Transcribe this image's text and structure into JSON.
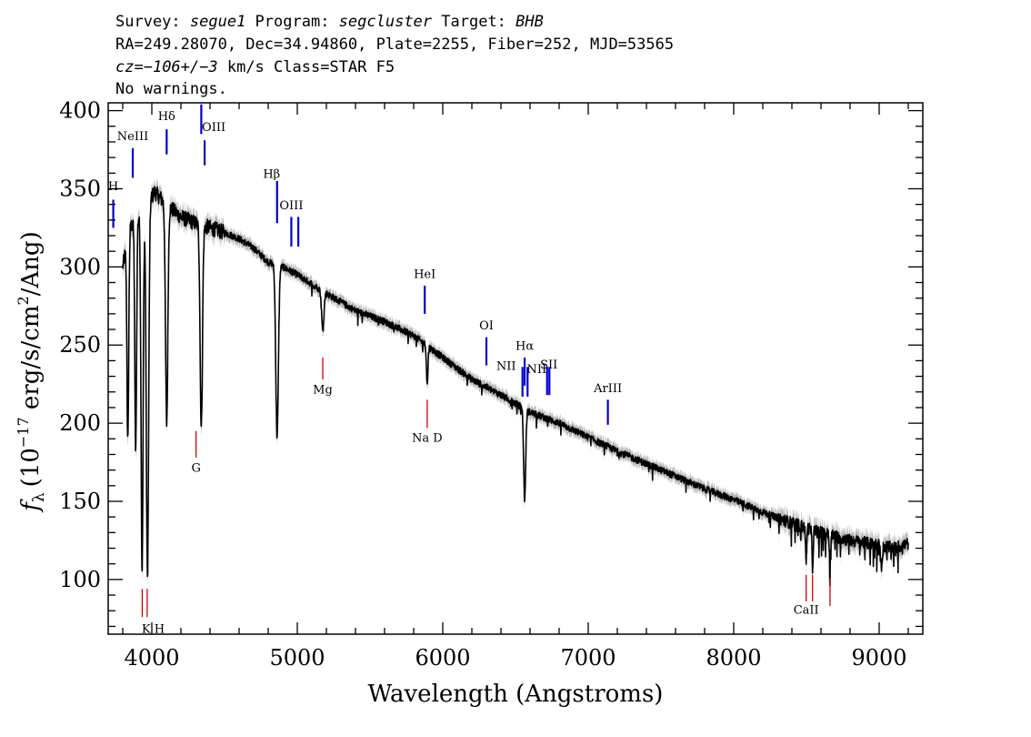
{
  "header": {
    "line1": [
      {
        "t": "Survey: ",
        "i": false
      },
      {
        "t": "segue1",
        "i": true
      },
      {
        "t": " Program: ",
        "i": false
      },
      {
        "t": "segcluster",
        "i": true
      },
      {
        "t": " Target: ",
        "i": false
      },
      {
        "t": "BHB",
        "i": true
      }
    ],
    "line2": [
      {
        "t": "RA=249.28070, Dec=34.94860, Plate=2255, Fiber=252, MJD=53565",
        "i": false
      }
    ],
    "line3": [
      {
        "t": "cz=",
        "i": true
      },
      {
        "t": "−106+/−3",
        "i": true
      },
      {
        "t": " km/s Class=STAR F5",
        "i": false
      }
    ],
    "line4": [
      {
        "t": "No warnings.",
        "i": false
      }
    ]
  },
  "chart_data": {
    "type": "line",
    "xlabel": "Wavelength (Angstroms)",
    "ylabel": "f_λ (10^-17 erg/s/cm^2/Ang)",
    "ylabel_parts": {
      "f": "f",
      "sub": "λ",
      "pre": "(10",
      "exp1": "−17",
      "mid": " erg/s/cm",
      "exp2": "2",
      "post": "/Ang)"
    },
    "xlim": [
      3700,
      9300
    ],
    "ylim": [
      65,
      405
    ],
    "x_ticks": [
      4000,
      5000,
      6000,
      7000,
      8000,
      9000
    ],
    "x_tick_labels": [
      "4000",
      "5000",
      "6000",
      "7000",
      "8000",
      "9000"
    ],
    "y_ticks": [
      100,
      150,
      200,
      250,
      300,
      350,
      400
    ],
    "y_tick_labels": [
      "100",
      "150",
      "200",
      "250",
      "300",
      "350",
      "400"
    ],
    "line_color": "#000000",
    "error_band_color": "#b8b8b8",
    "emission_color": "#0000cc",
    "absorption_color": "#cc0000",
    "continuum": [
      [
        3800,
        300
      ],
      [
        3850,
        325
      ],
      [
        3950,
        338
      ],
      [
        4020,
        348
      ],
      [
        4100,
        340
      ],
      [
        4200,
        332
      ],
      [
        4300,
        328
      ],
      [
        4400,
        325
      ],
      [
        4500,
        322
      ],
      [
        4600,
        318
      ],
      [
        4700,
        312
      ],
      [
        4800,
        303
      ],
      [
        4900,
        300
      ],
      [
        5000,
        295
      ],
      [
        5200,
        283
      ],
      [
        5400,
        272
      ],
      [
        5600,
        265
      ],
      [
        5800,
        256
      ],
      [
        6000,
        242
      ],
      [
        6200,
        228
      ],
      [
        6400,
        218
      ],
      [
        6600,
        207
      ],
      [
        6800,
        200
      ],
      [
        7000,
        191
      ],
      [
        7200,
        182
      ],
      [
        7400,
        174
      ],
      [
        7600,
        166
      ],
      [
        7800,
        158
      ],
      [
        8000,
        151
      ],
      [
        8200,
        143
      ],
      [
        8400,
        136
      ],
      [
        8600,
        130
      ],
      [
        8800,
        125
      ],
      [
        9000,
        122
      ],
      [
        9100,
        120
      ],
      [
        9200,
        123
      ]
    ],
    "absorption_features": [
      {
        "x": 3835,
        "depth": 130,
        "w": 6
      },
      {
        "x": 3889,
        "depth": 150,
        "w": 6
      },
      {
        "x": 3933,
        "depth": 230,
        "w": 7
      },
      {
        "x": 3970,
        "depth": 240,
        "w": 8
      },
      {
        "x": 4102,
        "depth": 140,
        "w": 8
      },
      {
        "x": 4340,
        "depth": 130,
        "w": 8
      },
      {
        "x": 4861,
        "depth": 110,
        "w": 9
      },
      {
        "x": 5175,
        "depth": 25,
        "w": 8
      },
      {
        "x": 5893,
        "depth": 25,
        "w": 5
      },
      {
        "x": 6563,
        "depth": 58,
        "w": 7
      },
      {
        "x": 8498,
        "depth": 22,
        "w": 4
      },
      {
        "x": 8542,
        "depth": 25,
        "w": 4
      },
      {
        "x": 8662,
        "depth": 20,
        "w": 4
      },
      {
        "x": 9015,
        "depth": 13,
        "w": 6
      }
    ],
    "emission_lines": [
      {
        "label": "H",
        "x": 3735,
        "y1": 325,
        "y2": 343,
        "label_y": 349,
        "dx": 0
      },
      {
        "label": "NeIII",
        "x": 3869,
        "y1": 357,
        "y2": 376,
        "label_y": 381,
        "dx": 0
      },
      {
        "label": "Hδ",
        "x": 4102,
        "y1": 372,
        "y2": 388,
        "label_y": 394,
        "dx": 0
      },
      {
        "label": "",
        "x": 4340,
        "y1": 385,
        "y2": 404,
        "label_y": 0,
        "dx": 0
      },
      {
        "label": "OIII",
        "x": 4363,
        "y1": 365,
        "y2": 381,
        "label_y": 387,
        "dx": 10
      },
      {
        "label": "Hβ",
        "x": 4861,
        "y1": 328,
        "y2": 355,
        "label_y": 357,
        "dx": -6
      },
      {
        "label": "OIII",
        "x": 4959,
        "y1": 313,
        "y2": 332,
        "label_y": 337,
        "dx": 0
      },
      {
        "label": "",
        "x": 5007,
        "y1": 313,
        "y2": 332,
        "label_y": 0,
        "dx": 0
      },
      {
        "label": "HeI",
        "x": 5876,
        "y1": 270,
        "y2": 288,
        "label_y": 293,
        "dx": 0
      },
      {
        "label": "OI",
        "x": 6300,
        "y1": 237,
        "y2": 255,
        "label_y": 260,
        "dx": 0
      },
      {
        "label": "NII",
        "x": 6548,
        "y1": 217,
        "y2": 236,
        "label_y": 234,
        "dx": -18
      },
      {
        "label": "Hα",
        "x": 6563,
        "y1": 224,
        "y2": 242,
        "label_y": 247,
        "dx": 0
      },
      {
        "label": "",
        "x": 6583,
        "y1": 217,
        "y2": 236,
        "label_y": 0,
        "dx": 0
      },
      {
        "label": "SII",
        "x": 6717,
        "y1": 218,
        "y2": 236,
        "label_y": 235,
        "dx": 2
      },
      {
        "label": "NII",
        "x": 6733,
        "y1": 218,
        "y2": 236,
        "label_y": 232,
        "dx": -14
      },
      {
        "label": "ArIII",
        "x": 7135,
        "y1": 199,
        "y2": 215,
        "label_y": 220,
        "dx": 0
      }
    ],
    "absorption_lines": [
      {
        "label": "Mg",
        "x": 5175,
        "y1": 228,
        "y2": 242,
        "label_y": 219,
        "dx": 0
      },
      {
        "label": "G",
        "x": 4304,
        "y1": 178,
        "y2": 195,
        "label_y": 169,
        "dx": 0
      },
      {
        "label": "Na  D",
        "x": 5893,
        "y1": 197,
        "y2": 215,
        "label_y": 188,
        "dx": 0
      },
      {
        "label": "K H",
        "x": 3934,
        "y1": 76,
        "y2": 94,
        "label_y": 66,
        "dx": 12
      },
      {
        "label": "",
        "x": 3968,
        "y1": 76,
        "y2": 94,
        "label_y": 0,
        "dx": 0
      },
      {
        "label": "CaII",
        "x": 8498,
        "y1": 86,
        "y2": 103,
        "label_y": 78,
        "dx": 0
      },
      {
        "label": "",
        "x": 8542,
        "y1": 86,
        "y2": 103,
        "label_y": 0,
        "dx": 0
      },
      {
        "label": "",
        "x": 8662,
        "y1": 83,
        "y2": 101,
        "label_y": 0,
        "dx": 0
      }
    ]
  }
}
